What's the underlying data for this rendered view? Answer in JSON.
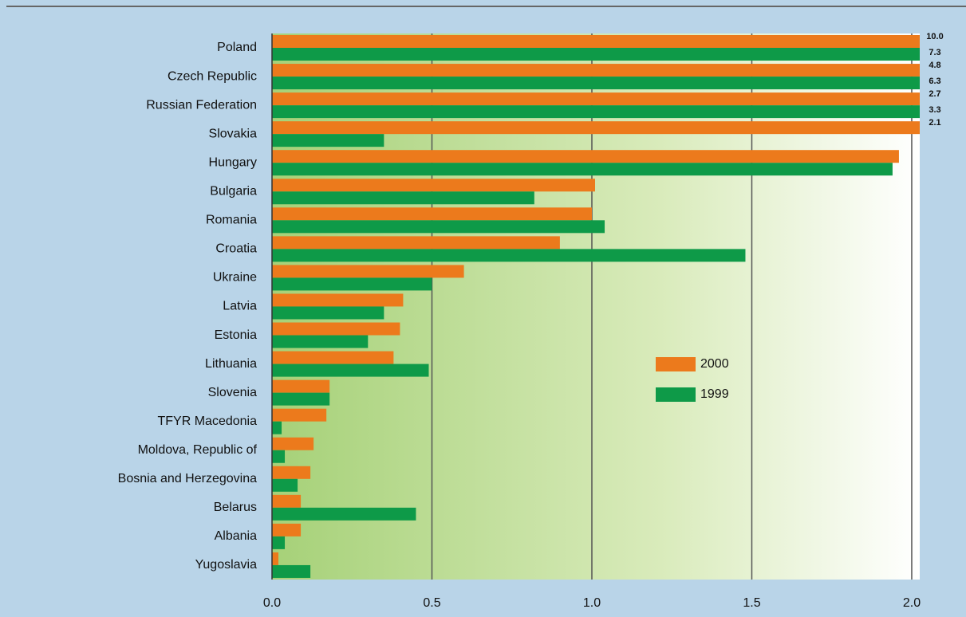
{
  "chart_data": {
    "type": "hbar",
    "categories": [
      "Poland",
      "Czech Republic",
      "Russian Federation",
      "Slovakia",
      "Hungary",
      "Bulgaria",
      "Romania",
      "Croatia",
      "Ukraine",
      "Latvia",
      "Estonia",
      "Lithuania",
      "Slovenia",
      "TFYR Macedonia",
      "Moldova, Republic of",
      "Bosnia and Herzegovina",
      "Belarus",
      "Albania",
      "Yugoslavia"
    ],
    "series": [
      {
        "name": "2000",
        "color": "#ec7a1c",
        "values": [
          10.0,
          4.8,
          2.7,
          2.1,
          1.96,
          1.01,
          1.0,
          0.9,
          0.6,
          0.41,
          0.4,
          0.38,
          0.18,
          0.17,
          0.13,
          0.12,
          0.09,
          0.09,
          0.02
        ],
        "value_labels": [
          "10.0",
          "4.8",
          "2.7",
          "2.1",
          null,
          null,
          null,
          null,
          null,
          null,
          null,
          null,
          null,
          null,
          null,
          null,
          null,
          null,
          null
        ]
      },
      {
        "name": "1999",
        "color": "#0e9a48",
        "values": [
          7.3,
          6.3,
          3.3,
          0.35,
          1.94,
          0.82,
          1.04,
          1.48,
          0.5,
          0.35,
          0.3,
          0.49,
          0.18,
          0.03,
          0.04,
          0.08,
          0.45,
          0.04,
          0.12
        ],
        "value_labels": [
          "7.3",
          "6.3",
          "3.3",
          null,
          null,
          null,
          null,
          null,
          null,
          null,
          null,
          null,
          null,
          null,
          null,
          null,
          null,
          null,
          null
        ]
      }
    ],
    "xlim": [
      0,
      2.025
    ],
    "xticks": [
      {
        "value": 0,
        "label": "0.0"
      },
      {
        "value": 0.5,
        "label": "0.5"
      },
      {
        "value": 1,
        "label": "1.0"
      },
      {
        "value": 1.5,
        "label": "1.5"
      },
      {
        "value": 2,
        "label": "2.0"
      }
    ],
    "grid": true,
    "legend": "right"
  }
}
